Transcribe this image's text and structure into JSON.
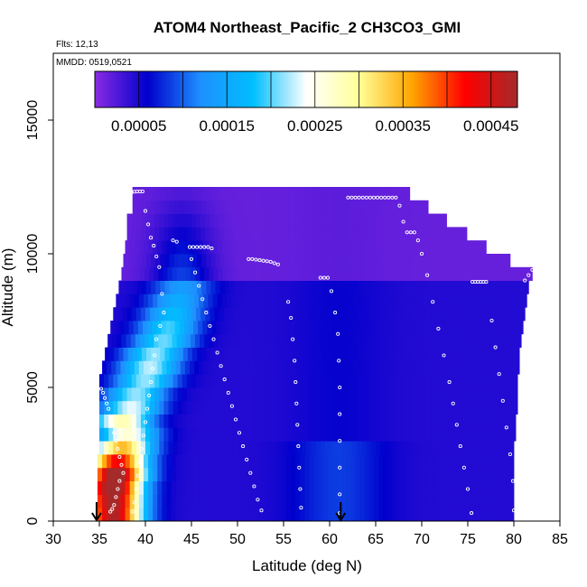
{
  "chart_data": {
    "type": "heatmap",
    "title": "ATOM4 Northeast_Pacific_2 CH3CO3_GMI",
    "annotations": [
      "Flts: 12,13",
      "MMDD: 0519,0521"
    ],
    "xlabel": "Latitude (deg N)",
    "ylabel": "Altitude (m)",
    "xlim": [
      30,
      85
    ],
    "ylim": [
      0,
      17500
    ],
    "x_ticks": [
      "30",
      "35",
      "40",
      "45",
      "50",
      "55",
      "60",
      "65",
      "70",
      "75",
      "80",
      "85"
    ],
    "y_ticks": [
      "0",
      "5000",
      "10000",
      "15000"
    ],
    "grid": false,
    "colorbar": {
      "placement": "top-inside",
      "range": [
        0,
        0.00048
      ],
      "tick_labels": [
        "0.00005",
        "0.00015",
        "0.00025",
        "0.00035",
        "0.00045"
      ],
      "tick_values": [
        5e-05,
        0.00015,
        0.00025,
        0.00035,
        0.00045
      ],
      "boundaries": [
        5e-05,
        0.0001,
        0.00015,
        0.0002,
        0.00025,
        0.0003,
        0.00035,
        0.0004,
        0.00045
      ],
      "colors": [
        "#8a2be2",
        "#0000cd",
        "#1e90ff",
        "#00bfff",
        "#ffffff",
        "#ffff99",
        "#ffa500",
        "#ff0000",
        "#a52a2a"
      ]
    },
    "altitude_profile": [
      {
        "alt": 250,
        "lat_min": 34.8,
        "lat_max": 80.0,
        "peak": 0.00043,
        "peak_lat": 36.5
      },
      {
        "alt": 750,
        "lat_min": 34.8,
        "lat_max": 80.0,
        "peak": 0.00044,
        "peak_lat": 36.5
      },
      {
        "alt": 1250,
        "lat_min": 34.8,
        "lat_max": 80.0,
        "peak": 0.00046,
        "peak_lat": 36.5
      },
      {
        "alt": 1750,
        "lat_min": 34.8,
        "lat_max": 80.0,
        "peak": 0.00046,
        "peak_lat": 36.8
      },
      {
        "alt": 2250,
        "lat_min": 34.8,
        "lat_max": 80.0,
        "peak": 0.00038,
        "peak_lat": 37.0
      },
      {
        "alt": 2750,
        "lat_min": 35.0,
        "lat_max": 80.0,
        "peak": 0.0003,
        "peak_lat": 37.5
      },
      {
        "alt": 3250,
        "lat_min": 35.0,
        "lat_max": 80.2,
        "peak": 0.00022,
        "peak_lat": 38.0
      },
      {
        "alt": 3750,
        "lat_min": 35.0,
        "lat_max": 80.2,
        "peak": 0.00024,
        "peak_lat": 37.5
      },
      {
        "alt": 4250,
        "lat_min": 35.0,
        "lat_max": 80.4,
        "peak": 0.00019,
        "peak_lat": 38.5
      },
      {
        "alt": 4750,
        "lat_min": 35.0,
        "lat_max": 80.4,
        "peak": 0.00017,
        "peak_lat": 39.0
      },
      {
        "alt": 5250,
        "lat_min": 35.0,
        "lat_max": 80.4,
        "peak": 0.00017,
        "peak_lat": 40.0
      },
      {
        "alt": 5750,
        "lat_min": 35.3,
        "lat_max": 80.6,
        "peak": 0.00018,
        "peak_lat": 40.5
      },
      {
        "alt": 6250,
        "lat_min": 35.6,
        "lat_max": 80.6,
        "peak": 0.00017,
        "peak_lat": 41.0
      },
      {
        "alt": 6750,
        "lat_min": 35.9,
        "lat_max": 80.8,
        "peak": 0.00016,
        "peak_lat": 42.0
      },
      {
        "alt": 7250,
        "lat_min": 36.2,
        "lat_max": 81.0,
        "peak": 0.00015,
        "peak_lat": 42.5
      },
      {
        "alt": 7750,
        "lat_min": 36.5,
        "lat_max": 81.2,
        "peak": 0.00013,
        "peak_lat": 43.0
      },
      {
        "alt": 8250,
        "lat_min": 36.8,
        "lat_max": 81.4,
        "peak": 0.00011,
        "peak_lat": 43.5
      },
      {
        "alt": 8750,
        "lat_min": 37.1,
        "lat_max": 81.6,
        "peak": 9e-05,
        "peak_lat": 44.0
      },
      {
        "alt": 9250,
        "lat_min": 37.4,
        "lat_max": 82.0,
        "peak": 7e-05,
        "peak_lat": 44.0
      },
      {
        "alt": 9750,
        "lat_min": 37.6,
        "lat_max": 79.6,
        "peak": 6e-05,
        "peak_lat": 44.0
      },
      {
        "alt": 10250,
        "lat_min": 37.8,
        "lat_max": 77.0,
        "peak": 5e-05,
        "peak_lat": 44.0
      },
      {
        "alt": 10750,
        "lat_min": 38.0,
        "lat_max": 74.9,
        "peak": 4e-05,
        "peak_lat": 44.0
      },
      {
        "alt": 11250,
        "lat_min": 38.0,
        "lat_max": 72.7,
        "peak": 3e-05,
        "peak_lat": 44.0
      },
      {
        "alt": 11750,
        "lat_min": 38.6,
        "lat_max": 70.7,
        "peak": 2e-05,
        "peak_lat": 44.0
      },
      {
        "alt": 12250,
        "lat_min": 38.6,
        "lat_max": 68.7,
        "peak": 1e-05,
        "peak_lat": 44.0
      }
    ],
    "flight_track_points": [
      [
        35.2,
        4950
      ],
      [
        35.4,
        4800
      ],
      [
        35.6,
        4600
      ],
      [
        35.8,
        4400
      ],
      [
        36.0,
        4200
      ],
      [
        36.2,
        3900
      ],
      [
        36.4,
        3600
      ],
      [
        36.6,
        3300
      ],
      [
        36.8,
        3000
      ],
      [
        37.0,
        2700
      ],
      [
        37.2,
        2400
      ],
      [
        37.4,
        2100
      ],
      [
        37.6,
        1800
      ],
      [
        37.2,
        1500
      ],
      [
        37.0,
        1200
      ],
      [
        36.8,
        900
      ],
      [
        36.6,
        600
      ],
      [
        36.4,
        450
      ],
      [
        36.2,
        350
      ],
      [
        38.2,
        12250
      ],
      [
        38.5,
        12300
      ],
      [
        38.8,
        12320
      ],
      [
        39.1,
        12330
      ],
      [
        39.4,
        12330
      ],
      [
        39.7,
        12330
      ],
      [
        40.0,
        11600
      ],
      [
        40.3,
        11100
      ],
      [
        40.6,
        10600
      ],
      [
        40.9,
        10300
      ],
      [
        41.2,
        9900
      ],
      [
        41.5,
        9500
      ],
      [
        41.8,
        8500
      ],
      [
        42.0,
        7800
      ],
      [
        41.6,
        7300
      ],
      [
        41.2,
        6800
      ],
      [
        41.0,
        6200
      ],
      [
        40.8,
        5700
      ],
      [
        40.6,
        5200
      ],
      [
        40.4,
        4700
      ],
      [
        40.2,
        4200
      ],
      [
        40.0,
        3700
      ],
      [
        39.8,
        3200
      ],
      [
        39.6,
        2700
      ],
      [
        39.4,
        2200
      ],
      [
        39.2,
        1700
      ],
      [
        39.0,
        1200
      ],
      [
        38.8,
        700
      ],
      [
        38.6,
        350
      ],
      [
        43.0,
        10500
      ],
      [
        43.4,
        10450
      ],
      [
        44.8,
        10250
      ],
      [
        45.2,
        10250
      ],
      [
        45.6,
        10250
      ],
      [
        46.0,
        10250
      ],
      [
        46.4,
        10250
      ],
      [
        46.8,
        10250
      ],
      [
        47.2,
        10200
      ],
      [
        45.0,
        9800
      ],
      [
        45.4,
        9300
      ],
      [
        45.8,
        8800
      ],
      [
        46.2,
        8300
      ],
      [
        46.6,
        7800
      ],
      [
        47.0,
        7300
      ],
      [
        47.4,
        6800
      ],
      [
        47.8,
        6300
      ],
      [
        48.2,
        5800
      ],
      [
        48.6,
        5300
      ],
      [
        49.0,
        4800
      ],
      [
        49.4,
        4300
      ],
      [
        49.8,
        3800
      ],
      [
        50.2,
        3300
      ],
      [
        50.6,
        2800
      ],
      [
        51.0,
        2300
      ],
      [
        51.4,
        1800
      ],
      [
        51.8,
        1300
      ],
      [
        52.2,
        800
      ],
      [
        52.6,
        400
      ],
      [
        51.2,
        9800
      ],
      [
        51.6,
        9800
      ],
      [
        52.0,
        9780
      ],
      [
        52.4,
        9760
      ],
      [
        52.8,
        9740
      ],
      [
        53.2,
        9720
      ],
      [
        53.6,
        9700
      ],
      [
        54.0,
        9650
      ],
      [
        54.4,
        9600
      ],
      [
        55.5,
        8200
      ],
      [
        55.8,
        7600
      ],
      [
        56.0,
        6800
      ],
      [
        56.2,
        6000
      ],
      [
        56.3,
        5200
      ],
      [
        56.4,
        4400
      ],
      [
        56.5,
        3600
      ],
      [
        56.6,
        2800
      ],
      [
        56.7,
        2000
      ],
      [
        56.8,
        1200
      ],
      [
        56.9,
        500
      ],
      [
        59.0,
        9100
      ],
      [
        59.4,
        9100
      ],
      [
        59.8,
        9100
      ],
      [
        60.2,
        8600
      ],
      [
        60.6,
        7800
      ],
      [
        60.9,
        7000
      ],
      [
        61.0,
        6000
      ],
      [
        61.1,
        5000
      ],
      [
        61.1,
        4000
      ],
      [
        61.1,
        3000
      ],
      [
        61.1,
        2000
      ],
      [
        61.1,
        1000
      ],
      [
        61.1,
        300
      ],
      [
        62.0,
        12100
      ],
      [
        62.4,
        12100
      ],
      [
        62.8,
        12100
      ],
      [
        63.2,
        12100
      ],
      [
        63.6,
        12100
      ],
      [
        64.0,
        12100
      ],
      [
        64.4,
        12100
      ],
      [
        64.8,
        12100
      ],
      [
        65.2,
        12100
      ],
      [
        65.6,
        12100
      ],
      [
        66.0,
        12100
      ],
      [
        66.4,
        12100
      ],
      [
        66.8,
        12100
      ],
      [
        67.2,
        12100
      ],
      [
        67.6,
        11800
      ],
      [
        68.0,
        11200
      ],
      [
        68.4,
        10800
      ],
      [
        68.8,
        10800
      ],
      [
        69.2,
        10800
      ],
      [
        69.6,
        10500
      ],
      [
        70.0,
        10000
      ],
      [
        70.6,
        9200
      ],
      [
        71.2,
        8200
      ],
      [
        71.8,
        7200
      ],
      [
        72.4,
        6200
      ],
      [
        73.0,
        5200
      ],
      [
        73.4,
        4400
      ],
      [
        73.8,
        3600
      ],
      [
        74.2,
        2800
      ],
      [
        74.6,
        2000
      ],
      [
        75.0,
        1200
      ],
      [
        75.4,
        300
      ],
      [
        75.5,
        8950
      ],
      [
        75.8,
        8950
      ],
      [
        76.1,
        8950
      ],
      [
        76.4,
        8950
      ],
      [
        76.7,
        8950
      ],
      [
        77.0,
        8950
      ],
      [
        77.6,
        7500
      ],
      [
        78.0,
        6500
      ],
      [
        78.4,
        5500
      ],
      [
        78.8,
        4500
      ],
      [
        79.2,
        3500
      ],
      [
        79.6,
        2500
      ],
      [
        79.9,
        1500
      ],
      [
        80.0,
        400
      ],
      [
        81.2,
        9000
      ],
      [
        81.6,
        9200
      ],
      [
        82.0,
        9400
      ]
    ],
    "markers": [
      {
        "type": "arrow-down",
        "lat": 34.7
      },
      {
        "type": "arrow-down",
        "lat": 61.2
      }
    ]
  }
}
